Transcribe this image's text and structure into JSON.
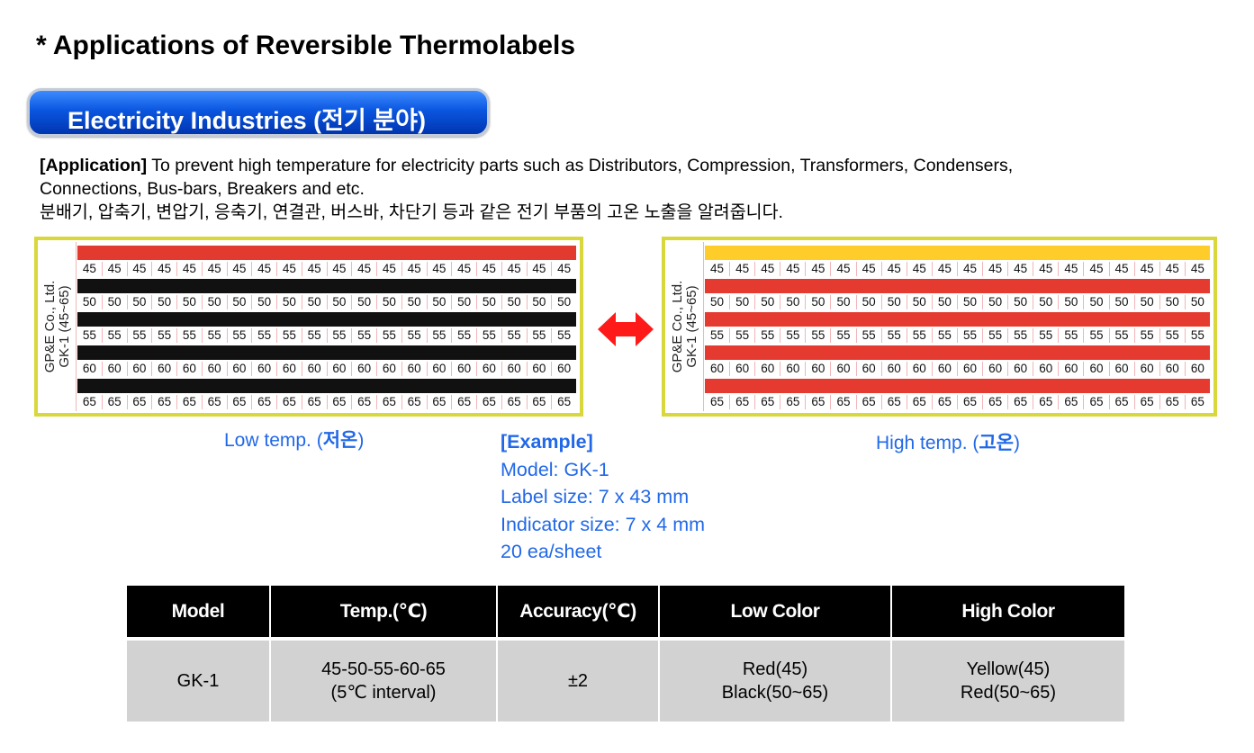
{
  "title": "* Applications of Reversible Thermolabels",
  "section": {
    "label": "Electricity Industries (전기 분야)"
  },
  "application": {
    "bold_label": "[Application]",
    "line1": " To prevent high temperature for electricity parts such as  Distributors, Compression, Transformers, Condensers,",
    "line2": "Connections, Bus-bars, Breakers and etc.",
    "line3": "분배기, 압축기, 변압기, 응축기, 연결관, 버스바, 차단기 등과 같은 전기 부품의 고온 노출을 알려줍니다."
  },
  "label_sheet": {
    "side_text": "GP&E Co., Ltd.\nGK-1 (45~65)",
    "columns_per_row": 20,
    "temperatures": [
      "45",
      "50",
      "55",
      "60",
      "65"
    ],
    "low_state": {
      "caption_prefix": "Low temp. (",
      "caption_korean": "저온",
      "caption_suffix": ")",
      "bar_colors": [
        "#e23a2e",
        "#111111",
        "#111111",
        "#111111",
        "#111111"
      ]
    },
    "high_state": {
      "caption_prefix": "High temp. (",
      "caption_korean": "고온",
      "caption_suffix": ")",
      "bar_colors": [
        "#ffcd2a",
        "#e53a2f",
        "#e53a2f",
        "#e53a2f",
        "#e53a2f"
      ]
    }
  },
  "example": {
    "title": "[Example]",
    "model": "Model: GK-1",
    "label_size": "Label size: 7 x 43 mm",
    "indicator_size": "Indicator size: 7 x 4 mm",
    "per_sheet": "20 ea/sheet"
  },
  "spec_table": {
    "headers": [
      "Model",
      "Temp.(℃)",
      "Accuracy(℃)",
      "Low Color",
      "High Color"
    ],
    "row": {
      "model": "GK-1",
      "temp_line1": "45-50-55-60-65",
      "temp_line2": "(5℃ interval)",
      "accuracy": "±2",
      "low_line1": "Red(45)",
      "low_line2": "Black(50~65)",
      "high_line1": "Yellow(45)",
      "high_line2": "Red(50~65)"
    }
  },
  "colors": {
    "accent_blue": "#2168e8",
    "section_blue": "#0b56e0",
    "sheet_border": "#d8d83c",
    "arrow_red": "#ff1a1a"
  },
  "icons": {
    "swap": "double-arrow-icon"
  }
}
